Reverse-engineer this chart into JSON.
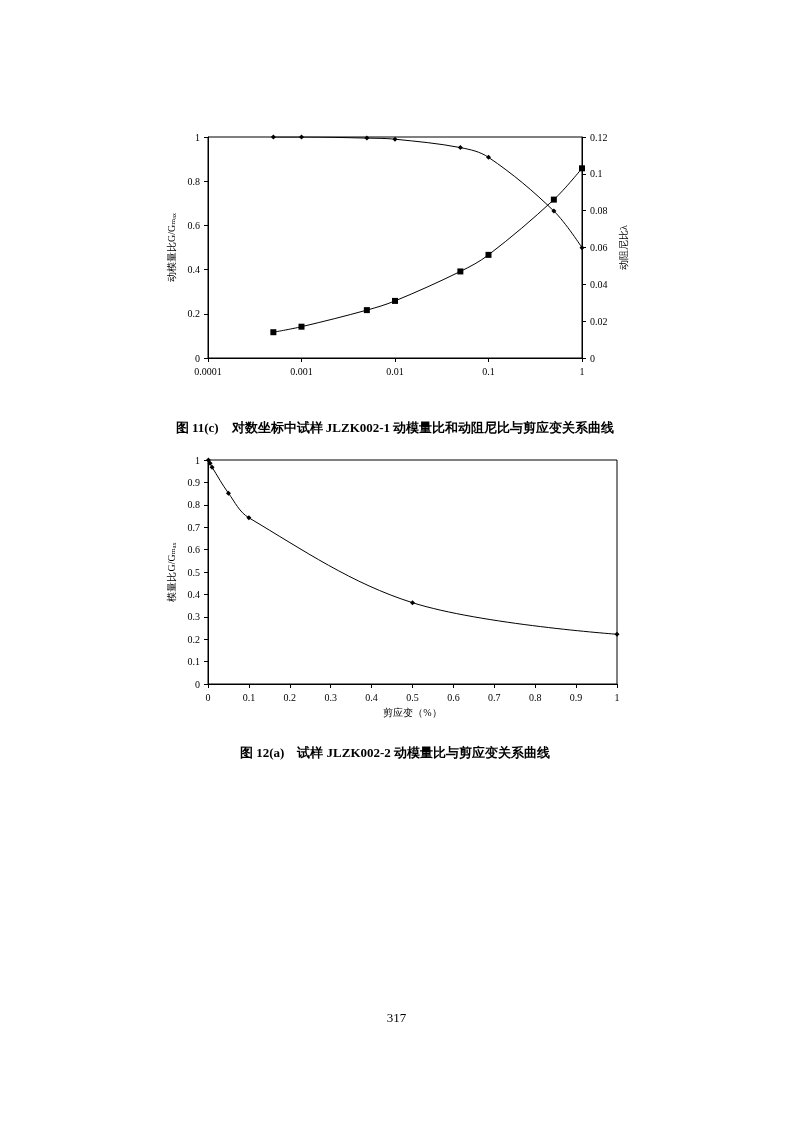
{
  "chart_data": [
    {
      "type": "line",
      "title": "图 11(c)　对数坐标中试样 JLZK002-1 动模量比和动阻尼比与剪应变关系曲线",
      "ylabel": "动模量比G/Gₘₐₓ",
      "y2label": "动阻尼比λ",
      "x": [
        0.0005,
        0.001,
        0.005,
        0.01,
        0.05,
        0.1,
        0.5,
        1
      ],
      "series": [
        {
          "color": "#000000",
          "marker": "diamond",
          "values": [
            1,
            1,
            0.995,
            0.99,
            0.952,
            0.908,
            0.665,
            0.499
          ]
        },
        {
          "color": "#000000",
          "marker": "square",
          "axis": "y2",
          "values": [
            0.014,
            0.017,
            0.026,
            0.031,
            0.047,
            0.056,
            0.086,
            0.103
          ]
        }
      ],
      "log": "x",
      "xlim": [
        0.0001,
        1
      ],
      "xticks": [
        0.0001,
        0.001,
        0.01,
        0.1,
        1
      ],
      "ylim": [
        0,
        1
      ],
      "yticks": [
        0,
        0.2,
        0.4,
        0.6,
        0.8,
        1
      ],
      "y2lim": [
        0,
        0.12
      ],
      "y2ticks": [
        0,
        0.02,
        0.04,
        0.06,
        0.08,
        0.1,
        0.12
      ]
    },
    {
      "type": "line",
      "title": "图 12(a)　试样 JLZK002-2 动模量比与剪应变关系曲线",
      "xlabel": "剪应变（%）",
      "ylabel": "模量比G/Gₘₐₓ",
      "x": [
        0.001,
        0.005,
        0.01,
        0.05,
        0.1,
        0.5,
        1
      ],
      "series": [
        {
          "color": "#000000",
          "marker": "diamond",
          "values": [
            1,
            0.986,
            0.968,
            0.852,
            0.742,
            0.363,
            0.222
          ]
        }
      ],
      "xlim": [
        0,
        1
      ],
      "xticks": [
        0,
        0.1,
        0.2,
        0.3,
        0.4,
        0.5,
        0.6,
        0.7,
        0.8,
        0.9,
        1
      ],
      "ylim": [
        0,
        1
      ],
      "yticks": [
        0,
        0.1,
        0.2,
        0.3,
        0.4,
        0.5,
        0.6,
        0.7,
        0.8,
        0.9,
        1
      ],
      "annotations": [
        "317"
      ]
    }
  ]
}
